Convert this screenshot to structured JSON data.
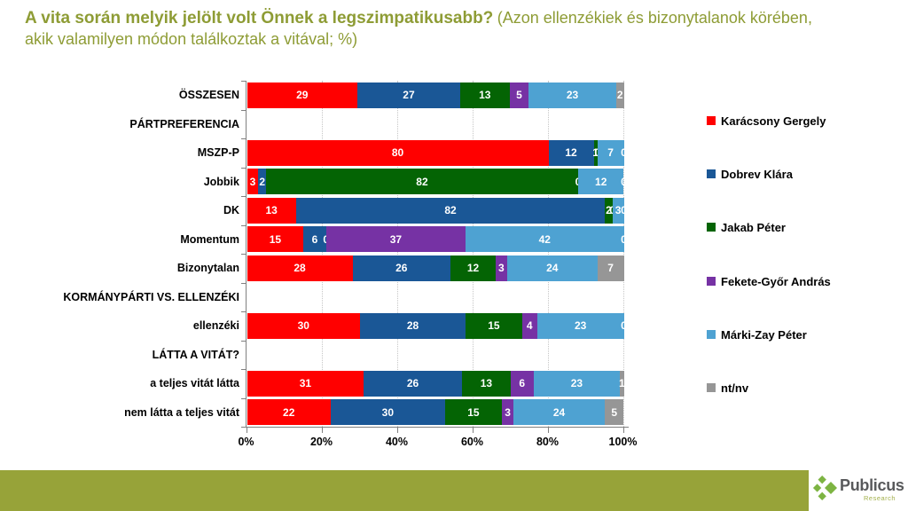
{
  "title": {
    "main": "A vita során melyik jelölt volt Önnek a legszimpatikusabb?",
    "sub": "(Azon ellenzékiek és bizonytalanok körében, akik valamilyen módon találkoztak a vitával; %)"
  },
  "colors": {
    "accent_olive": "#8E9C35",
    "footer_band_olive": "#97A339",
    "logo_green": "#7DB442",
    "series": [
      "#FF0000",
      "#1A5796",
      "#046404",
      "#7632A4",
      "#4EA2D2",
      "#969696"
    ]
  },
  "chart_data": {
    "type": "bar",
    "stacked": true,
    "orientation": "horizontal",
    "grid": "vertical-dotted",
    "legend_position": "right",
    "xlim": [
      0,
      100
    ],
    "x_tick_labels": [
      "0%",
      "20%",
      "40%",
      "60%",
      "80%",
      "100%"
    ],
    "series_names": [
      "Karácsony Gergely",
      "Dobrev Klára",
      "Jakab Péter",
      "Fekete-Győr András",
      "Márki-Zay Péter",
      "nt/nv"
    ],
    "rows": [
      {
        "label": "ÖSSZESEN",
        "values": [
          29,
          27,
          13,
          5,
          23,
          2
        ]
      },
      {
        "label": "PÁRTPREFERENCIA",
        "values": null
      },
      {
        "label": "MSZP-P",
        "values": [
          80,
          12,
          1,
          0,
          7,
          0
        ]
      },
      {
        "label": "Jobbik",
        "values": [
          3,
          2,
          82,
          0,
          12,
          0
        ]
      },
      {
        "label": "DK",
        "values": [
          13,
          82,
          2,
          0,
          3,
          0
        ]
      },
      {
        "label": "Momentum",
        "values": [
          15,
          6,
          0,
          37,
          42,
          0
        ]
      },
      {
        "label": "Bizonytalan",
        "values": [
          28,
          26,
          12,
          3,
          24,
          7
        ]
      },
      {
        "label": "KORMÁNYPÁRTI VS. ELLENZÉKI",
        "values": null
      },
      {
        "label": "ellenzéki",
        "values": [
          30,
          28,
          15,
          4,
          23,
          0
        ]
      },
      {
        "label": "LÁTTA A VITÁT?",
        "values": null
      },
      {
        "label": "a teljes vitát látta",
        "values": [
          31,
          26,
          13,
          6,
          23,
          1
        ]
      },
      {
        "label": "nem látta a teljes vitát",
        "values": [
          22,
          30,
          15,
          3,
          24,
          5
        ]
      }
    ]
  },
  "footer": {
    "brand": "Publicus",
    "brand_sub": "Research"
  }
}
